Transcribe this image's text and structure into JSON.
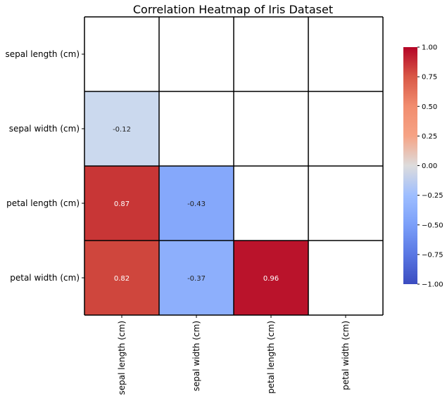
{
  "chart_data": {
    "type": "heatmap",
    "title": "Correlation Heatmap of Iris Dataset",
    "xlabel": "",
    "ylabel": "",
    "row_labels": [
      "sepal length (cm)",
      "sepal width (cm)",
      "petal length (cm)",
      "petal width (cm)"
    ],
    "col_labels": [
      "sepal length (cm)",
      "sepal width (cm)",
      "petal length (cm)",
      "petal width (cm)"
    ],
    "mask": "upper triangle including diagonal",
    "cells": [
      {
        "row": 1,
        "col": 0,
        "value": -0.12,
        "label": "-0.12"
      },
      {
        "row": 2,
        "col": 0,
        "value": 0.87,
        "label": "0.87"
      },
      {
        "row": 2,
        "col": 1,
        "value": -0.43,
        "label": "-0.43"
      },
      {
        "row": 3,
        "col": 0,
        "value": 0.82,
        "label": "0.82"
      },
      {
        "row": 3,
        "col": 1,
        "value": -0.37,
        "label": "-0.37"
      },
      {
        "row": 3,
        "col": 2,
        "value": 0.96,
        "label": "0.96"
      }
    ],
    "colorbar": {
      "colormap": "coolwarm",
      "range": [
        -1.0,
        1.0
      ],
      "ticks": [
        "1.00",
        "0.75",
        "0.50",
        "0.25",
        "0.00",
        "−0.25",
        "−0.50",
        "−0.75",
        "−1.00"
      ],
      "tick_values": [
        1.0,
        0.75,
        0.5,
        0.25,
        0.0,
        -0.25,
        -0.5,
        -0.75,
        -1.0
      ],
      "position": "right"
    },
    "grid": true
  }
}
